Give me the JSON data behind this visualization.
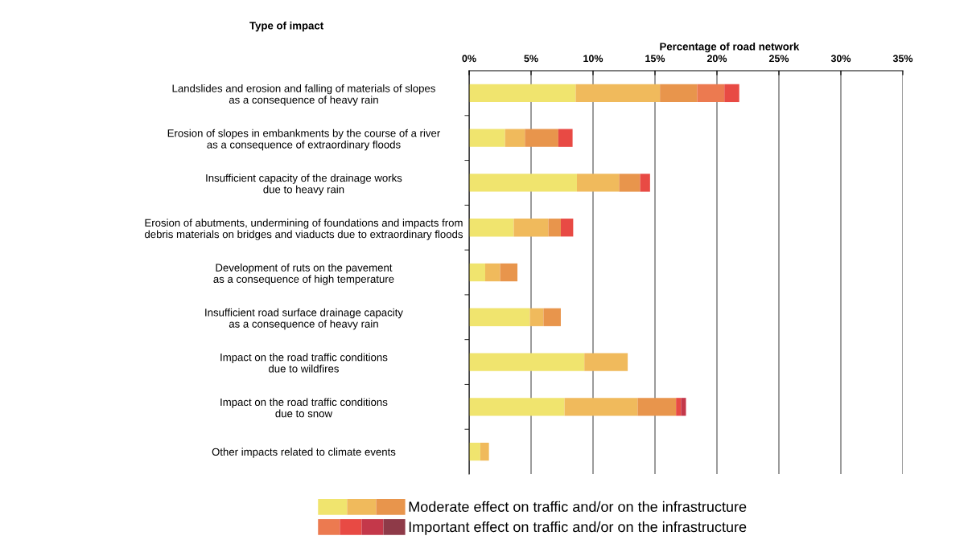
{
  "chart_data": {
    "type": "bar",
    "orientation": "horizontal",
    "stacked": true,
    "ylabel": "Type of impact",
    "xlabel": "Percentage of road network",
    "categories": [
      "Landslides and erosion and falling of materials of slopes\nas a consequence of heavy rain",
      "Erosion of slopes in embankments by the course of a river\nas a consequence of extraordinary floods",
      "Insufficient capacity of the drainage works\ndue to heavy rain",
      "Erosion of abutments, undermining of foundations and impacts from\ndebris materials on bridges and viaducts due to extraordinary floods",
      "Development of ruts on the pavement\nas a consequence of high temperature",
      "Insufficient road surface drainage capacity\nas a consequence of heavy rain",
      "Impact on the road traffic conditions\ndue to wildfires",
      "Impact on the road traffic conditions\ndue to snow",
      "Other impacts related to climate events"
    ],
    "series": [
      {
        "color": "#f0e46e",
        "values": [
          8.6,
          2.9,
          8.7,
          3.6,
          1.3,
          4.9,
          9.3,
          7.7,
          0.9
        ]
      },
      {
        "color": "#f0ba5c",
        "values": [
          6.8,
          1.6,
          3.4,
          2.8,
          1.2,
          1.1,
          3.5,
          5.9,
          0.7
        ]
      },
      {
        "name": "Moderate effect on traffic and/or on the infrastructure",
        "color": "#e8954c",
        "values": [
          3.0,
          2.7,
          1.7,
          1.0,
          1.4,
          1.4,
          null,
          3.1,
          null
        ]
      },
      {
        "color": "#ec7a50",
        "values": [
          2.2,
          null,
          null,
          null,
          null,
          null,
          null,
          null,
          null
        ]
      },
      {
        "color": "#e84a44",
        "values": [
          1.2,
          1.15,
          0.8,
          1.0,
          null,
          null,
          null,
          0.4,
          null
        ]
      },
      {
        "color": "#c4384a",
        "values": [
          null,
          null,
          null,
          null,
          null,
          null,
          null,
          0.4,
          null
        ]
      },
      {
        "name": "Important effect on traffic and/or on the infrastructure",
        "color": "#8e3a48",
        "values": [
          null,
          null,
          null,
          null,
          null,
          null,
          null,
          null,
          null
        ]
      }
    ],
    "xlim": [
      0,
      35
    ],
    "xticks": [
      {
        "value": 0,
        "label": "0%"
      },
      {
        "value": 5,
        "label": "5%"
      },
      {
        "value": 10,
        "label": "10%"
      },
      {
        "value": 15,
        "label": "15%"
      },
      {
        "value": 20,
        "label": "20%"
      },
      {
        "value": 25,
        "label": "25%"
      },
      {
        "value": 30,
        "label": "30%"
      },
      {
        "value": 35,
        "label": "35%"
      }
    ],
    "grid": "x",
    "legend": "bottom"
  }
}
